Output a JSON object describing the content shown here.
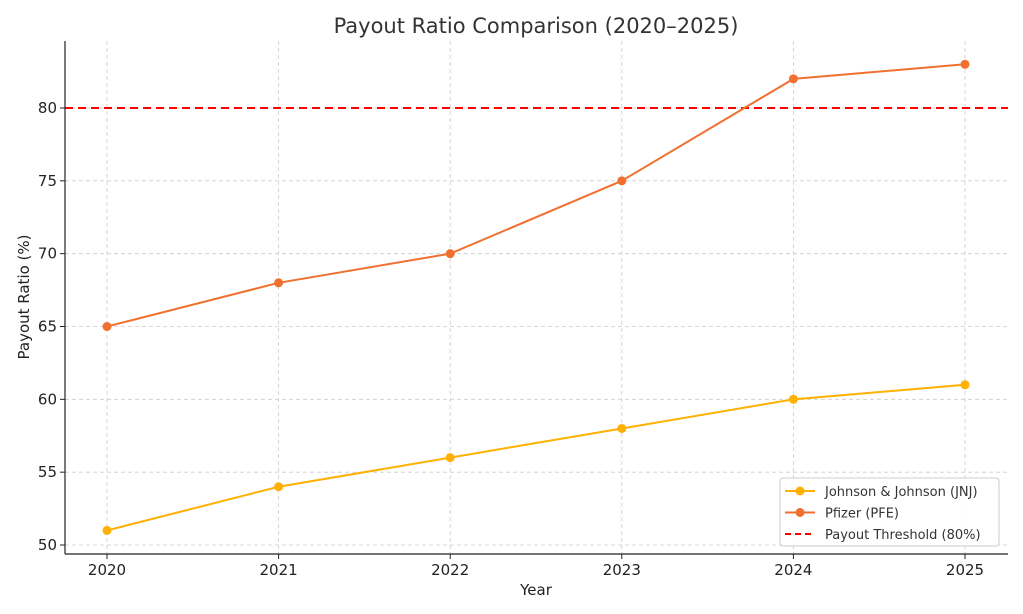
{
  "chart_data": {
    "type": "line",
    "title": "Payout Ratio Comparison (2020–2025)",
    "xlabel": "Year",
    "ylabel": "Payout Ratio (%)",
    "x": [
      2020,
      2021,
      2022,
      2023,
      2024,
      2025
    ],
    "x_tick_labels": [
      "2020",
      "2021",
      "2022",
      "2023",
      "2024",
      "2025"
    ],
    "y_ticks": [
      50,
      55,
      60,
      65,
      70,
      75,
      80
    ],
    "ylim": [
      49.4,
      84.6
    ],
    "grid": true,
    "legend_position": "lower right",
    "series": [
      {
        "name": "Johnson & Johnson (JNJ)",
        "color": "#FFB000",
        "marker": "circle",
        "values": [
          51,
          54,
          56,
          58,
          60,
          61
        ]
      },
      {
        "name": "Pfizer (PFE)",
        "color": "#F07030",
        "marker": "circle",
        "values": [
          65,
          68,
          70,
          75,
          82,
          83
        ]
      }
    ],
    "reference_lines": [
      {
        "name": "Payout Threshold (80%)",
        "y": 80,
        "color": "#FF0000",
        "style": "dashed"
      }
    ]
  }
}
